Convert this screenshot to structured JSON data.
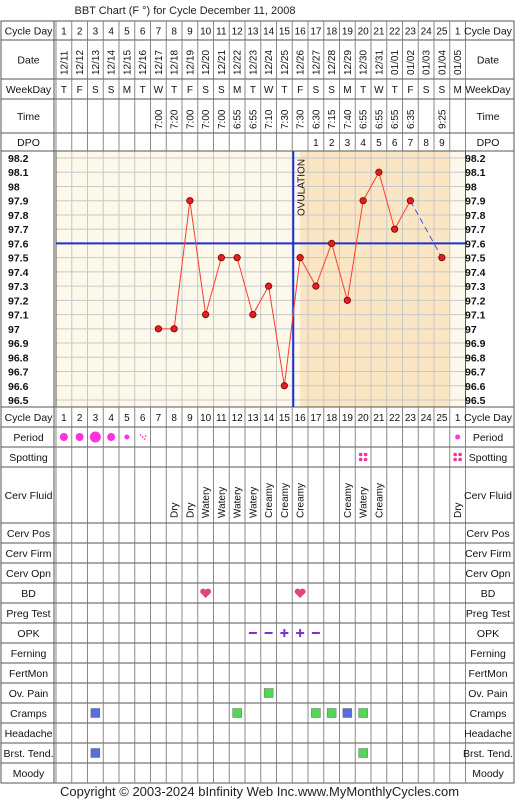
{
  "title": "BBT Chart (F °) for Cycle December 11, 2008",
  "footer": {
    "copyright": "Copyright © 2003-2024 bInfinity Web Inc.",
    "site": "www.MyMonthlyCycles.com"
  },
  "labels": {
    "cycle_day": "Cycle Day",
    "date": "Date",
    "weekday": "WeekDay",
    "time": "Time",
    "dpo": "DPO",
    "ovulation": "OVULATION"
  },
  "columns": {
    "cycle_days": [
      "1",
      "2",
      "3",
      "4",
      "5",
      "6",
      "7",
      "8",
      "9",
      "10",
      "11",
      "12",
      "13",
      "14",
      "15",
      "16",
      "17",
      "18",
      "19",
      "20",
      "21",
      "22",
      "23",
      "24",
      "25",
      "1"
    ],
    "dates": [
      "12/11",
      "12/12",
      "12/13",
      "12/14",
      "12/15",
      "12/16",
      "12/17",
      "12/18",
      "12/19",
      "12/20",
      "12/21",
      "12/22",
      "12/23",
      "12/24",
      "12/25",
      "12/26",
      "12/27",
      "12/28",
      "12/29",
      "12/30",
      "12/31",
      "01/01",
      "01/02",
      "01/03",
      "01/04",
      "01/05"
    ],
    "weekdays": [
      "T",
      "F",
      "S",
      "S",
      "M",
      "T",
      "W",
      "T",
      "F",
      "S",
      "S",
      "M",
      "T",
      "W",
      "T",
      "F",
      "S",
      "S",
      "M",
      "T",
      "W",
      "T",
      "F",
      "S",
      "S",
      "M"
    ],
    "times": [
      "",
      "",
      "",
      "",
      "",
      "",
      "7:00",
      "7:20",
      "7:00",
      "7:00",
      "7:00",
      "6:55",
      "6:55",
      "7:10",
      "7:30",
      "7:30",
      "6:30",
      "7:15",
      "7:40",
      "6:55",
      "6:55",
      "6:55",
      "6:35",
      "",
      "9:25",
      ""
    ],
    "dpo": [
      "",
      "",
      "",
      "",
      "",
      "",
      "",
      "",
      "",
      "",
      "",
      "",
      "",
      "",
      "",
      "",
      "1",
      "2",
      "3",
      "4",
      "5",
      "6",
      "7",
      "8",
      "9",
      ""
    ]
  },
  "obs_rows": [
    {
      "key": "period",
      "label": "Period"
    },
    {
      "key": "spotting",
      "label": "Spotting"
    },
    {
      "key": "cerv_fluid",
      "label": "Cerv Fluid"
    },
    {
      "key": "cerv_pos",
      "label": "Cerv Pos"
    },
    {
      "key": "cerv_firm",
      "label": "Cerv Firm"
    },
    {
      "key": "cerv_opn",
      "label": "Cerv Opn"
    },
    {
      "key": "bd",
      "label": "BD"
    },
    {
      "key": "preg_test",
      "label": "Preg Test"
    },
    {
      "key": "opk",
      "label": "OPK"
    },
    {
      "key": "ferning",
      "label": "Ferning"
    },
    {
      "key": "fertmon",
      "label": "FertMon"
    },
    {
      "key": "ov_pain",
      "label": "Ov. Pain"
    },
    {
      "key": "cramps",
      "label": "Cramps"
    },
    {
      "key": "headache",
      "label": "Headache"
    },
    {
      "key": "brst_tend",
      "label": "Brst. Tend."
    },
    {
      "key": "moody",
      "label": "Moody"
    }
  ],
  "observations": {
    "period": [
      "medium",
      "medium",
      "heavy",
      "medium",
      "light",
      "spotting",
      "",
      "",
      "",
      "",
      "",
      "",
      "",
      "",
      "",
      "",
      "",
      "",
      "",
      "",
      "",
      "",
      "",
      "",
      "",
      "light"
    ],
    "spotting": [
      "",
      "",
      "",
      "",
      "",
      "",
      "",
      "",
      "",
      "",
      "",
      "",
      "",
      "",
      "",
      "",
      "",
      "",
      "",
      "yes",
      "",
      "",
      "",
      "",
      "",
      "yes"
    ],
    "cerv_fluid": [
      "",
      "",
      "",
      "",
      "",
      "",
      "",
      "Dry",
      "Dry",
      "Watery",
      "Watery",
      "Watery",
      "Watery",
      "Creamy",
      "Creamy",
      "Creamy",
      "",
      "",
      "Creamy",
      "Watery",
      "Creamy",
      "",
      "",
      "",
      "",
      "Dry"
    ],
    "bd": [
      "",
      "",
      "",
      "",
      "",
      "",
      "",
      "",
      "",
      "yes",
      "",
      "",
      "",
      "",
      "",
      "yes",
      "",
      "",
      "",
      "",
      "",
      "",
      "",
      "",
      "",
      ""
    ],
    "opk": [
      "",
      "",
      "",
      "",
      "",
      "",
      "",
      "",
      "",
      "",
      "",
      "",
      "neg",
      "neg",
      "pos",
      "pos",
      "neg",
      "",
      "",
      "",
      "",
      "",
      "",
      "",
      "",
      ""
    ],
    "ov_pain": [
      "",
      "",
      "",
      "",
      "",
      "",
      "",
      "",
      "",
      "",
      "",
      "",
      "",
      "yes",
      "",
      "",
      "",
      "",
      "",
      "",
      "",
      "",
      "",
      "",
      "",
      ""
    ],
    "cramps": [
      "",
      "",
      "blue",
      "",
      "",
      "",
      "",
      "",
      "",
      "",
      "",
      "green",
      "",
      "",
      "",
      "",
      "green",
      "green",
      "blue",
      "green",
      "",
      "",
      "",
      "",
      "",
      ""
    ],
    "brst_tend": [
      "",
      "",
      "blue",
      "",
      "",
      "",
      "",
      "",
      "",
      "",
      "",
      "",
      "",
      "",
      "",
      "",
      "",
      "",
      "",
      "green",
      "",
      "",
      "",
      "",
      "",
      ""
    ]
  },
  "colors": {
    "temp_line": "#ff3b30",
    "temp_dot": "#e02020",
    "coverline": "#1f2fd0",
    "post_ov_bg": "#fbe6c4",
    "chart_bg": "#fcf8ea",
    "period_pink": "#ff33dd",
    "spotting_pink": "#ee3399",
    "heart": "#e0457a",
    "opk_purple": "#7a33cc",
    "cramps_blue": "#5a6de0",
    "cramps_green": "#55d555"
  },
  "chart_data": {
    "type": "line",
    "title": "BBT Chart (F °) for Cycle December 11, 2008",
    "x": [
      "1",
      "2",
      "3",
      "4",
      "5",
      "6",
      "7",
      "8",
      "9",
      "10",
      "11",
      "12",
      "13",
      "14",
      "15",
      "16",
      "17",
      "18",
      "19",
      "20",
      "21",
      "22",
      "23",
      "24",
      "25",
      "1"
    ],
    "series": [
      {
        "values": [
          null,
          null,
          null,
          null,
          null,
          null,
          97.0,
          97.0,
          97.9,
          97.1,
          97.5,
          97.5,
          97.1,
          97.3,
          96.6,
          97.5,
          97.3,
          97.6,
          97.2,
          97.9,
          98.1,
          97.7,
          97.9,
          null,
          97.5,
          null
        ]
      }
    ],
    "y_ticks": [
      98.2,
      98.1,
      98.0,
      97.9,
      97.8,
      97.7,
      97.6,
      97.5,
      97.4,
      97.3,
      97.2,
      97.1,
      97.0,
      96.9,
      96.8,
      96.7,
      96.6,
      96.5
    ],
    "ylim": [
      96.5,
      98.2
    ],
    "coverline": 97.6,
    "ovulation_day": 16,
    "dashed_gap": [
      23,
      25
    ],
    "grid": true
  }
}
